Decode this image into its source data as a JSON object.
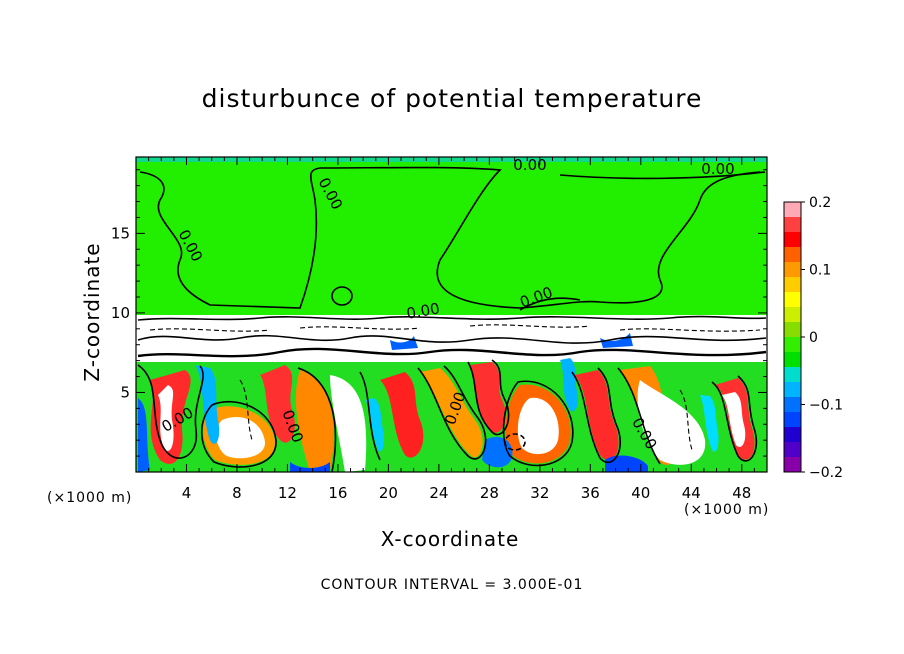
{
  "chart_data": {
    "type": "heatmap",
    "title": "disturbunce of potential temperature",
    "xlabel": "X-coordinate",
    "ylabel": "Z-coordinate",
    "x_unit_left": "(×1000 m)",
    "x_unit_right": "(×1000 m)",
    "xlim": [
      0,
      50
    ],
    "ylim": [
      0,
      19.8
    ],
    "x_ticks": [
      4,
      8,
      12,
      16,
      20,
      24,
      28,
      32,
      36,
      40,
      44,
      48
    ],
    "y_ticks": [
      5,
      10,
      15
    ],
    "colorbar": {
      "range": [
        -0.2,
        0.2
      ],
      "tick_values": [
        0.2,
        0.1,
        0,
        -0.1,
        -0.2
      ],
      "tick_labels": [
        "0.2",
        "0.1",
        "0",
        "−0.1",
        "−0.2"
      ],
      "colors": [
        "#ffaab4",
        "#ff4040",
        "#ff0000",
        "#ff6000",
        "#ff9900",
        "#ffcc00",
        "#ffff00",
        "#ccee00",
        "#88dd00",
        "#33ee00",
        "#00e000",
        "#00ddcc",
        "#00b4ff",
        "#0072ff",
        "#0044ff",
        "#2000d0",
        "#5000c8",
        "#8800a8"
      ]
    },
    "contour_labels": [
      "0.00",
      "0.00",
      "0.00",
      "0.00",
      "0.00",
      "0.00",
      "0.00",
      "0.00",
      "0.00",
      "0.00"
    ],
    "footer": "CONTOUR INTERVAL = 3.000E-01"
  }
}
